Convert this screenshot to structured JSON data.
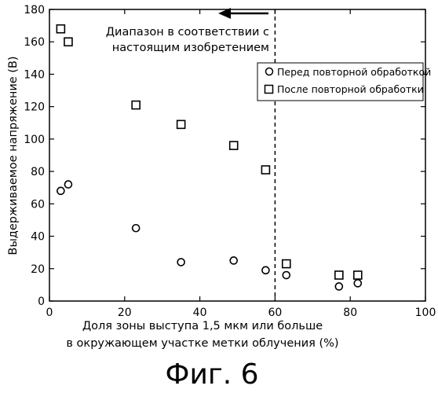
{
  "chart_data": {
    "type": "scatter",
    "title": "",
    "xlabel_lines": [
      "Доля зоны выступа 1,5 мкм или больше",
      "в окружающем участке метки облучения (%)"
    ],
    "ylabel": "Выдерживаемое напряжение (В)",
    "xlim": [
      0,
      100
    ],
    "ylim": [
      0,
      180
    ],
    "x_ticks": [
      "0",
      "20",
      "40",
      "60",
      "80",
      "100"
    ],
    "y_ticks": [
      "0",
      "20",
      "40",
      "60",
      "80",
      "100",
      "120",
      "140",
      "160",
      "180"
    ],
    "grid": false,
    "legend_position": "right",
    "series": [
      {
        "name": "Перед повторной обработкой",
        "marker": "circle",
        "points": [
          {
            "x": 3,
            "y": 68
          },
          {
            "x": 5,
            "y": 72
          },
          {
            "x": 23,
            "y": 45
          },
          {
            "x": 35,
            "y": 24
          },
          {
            "x": 49,
            "y": 25
          },
          {
            "x": 57.5,
            "y": 19
          },
          {
            "x": 63,
            "y": 16
          },
          {
            "x": 77,
            "y": 9
          },
          {
            "x": 82,
            "y": 11
          }
        ]
      },
      {
        "name": "После повторной обработки",
        "marker": "square",
        "points": [
          {
            "x": 3,
            "y": 168
          },
          {
            "x": 5,
            "y": 160
          },
          {
            "x": 23,
            "y": 121
          },
          {
            "x": 35,
            "y": 109
          },
          {
            "x": 49,
            "y": 96
          },
          {
            "x": 57.5,
            "y": 81
          },
          {
            "x": 63,
            "y": 23
          },
          {
            "x": 77,
            "y": 16
          },
          {
            "x": 82,
            "y": 16
          }
        ]
      }
    ],
    "threshold_line": {
      "x": 60,
      "style": "dashed"
    },
    "annotation_lines": [
      "Диапазон в соответствии с",
      "настоящим изобретением"
    ]
  },
  "caption": "Фиг. 6"
}
